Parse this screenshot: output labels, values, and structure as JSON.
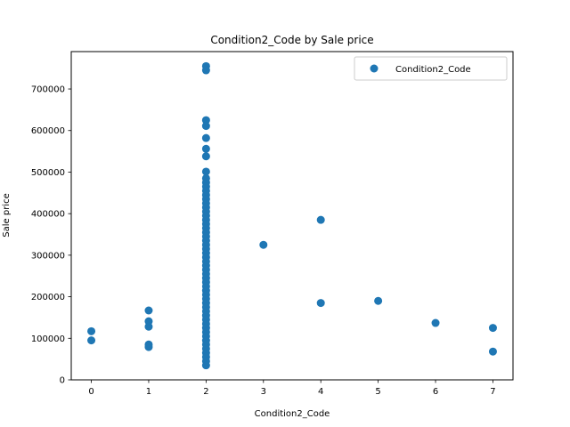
{
  "chart_data": {
    "type": "scatter",
    "title": "Condition2_Code by Sale price",
    "xlabel": "Condition2_Code",
    "ylabel": "Sale price",
    "xlim": [
      -0.35,
      7.35
    ],
    "ylim": [
      0,
      790000
    ],
    "xticks": [
      0,
      1,
      2,
      3,
      4,
      5,
      6,
      7
    ],
    "xtick_labels": [
      "0",
      "1",
      "2",
      "3",
      "4",
      "5",
      "6",
      "7"
    ],
    "yticks": [
      0,
      100000,
      200000,
      300000,
      400000,
      500000,
      600000,
      700000
    ],
    "ytick_labels": [
      "0",
      "100000",
      "200000",
      "300000",
      "400000",
      "500000",
      "600000",
      "700000"
    ],
    "grid": false,
    "legend_position": "top-right",
    "marker_color": "#1f77b4",
    "series": [
      {
        "name": "Condition2_Code",
        "points": [
          [
            0,
            117000
          ],
          [
            0,
            95000
          ],
          [
            1,
            167000
          ],
          [
            1,
            141000
          ],
          [
            1,
            128000
          ],
          [
            1,
            85000
          ],
          [
            1,
            79000
          ],
          [
            2,
            755000
          ],
          [
            2,
            745000
          ],
          [
            2,
            625000
          ],
          [
            2,
            611000
          ],
          [
            2,
            582000
          ],
          [
            2,
            556000
          ],
          [
            2,
            538000
          ],
          [
            2,
            501000
          ],
          [
            2,
            485000
          ],
          [
            2,
            475000
          ],
          [
            2,
            465000
          ],
          [
            2,
            455000
          ],
          [
            2,
            445000
          ],
          [
            2,
            435000
          ],
          [
            2,
            425000
          ],
          [
            2,
            415000
          ],
          [
            2,
            405000
          ],
          [
            2,
            395000
          ],
          [
            2,
            385000
          ],
          [
            2,
            375000
          ],
          [
            2,
            365000
          ],
          [
            2,
            355000
          ],
          [
            2,
            345000
          ],
          [
            2,
            335000
          ],
          [
            2,
            325000
          ],
          [
            2,
            315000
          ],
          [
            2,
            305000
          ],
          [
            2,
            295000
          ],
          [
            2,
            285000
          ],
          [
            2,
            275000
          ],
          [
            2,
            265000
          ],
          [
            2,
            255000
          ],
          [
            2,
            245000
          ],
          [
            2,
            235000
          ],
          [
            2,
            225000
          ],
          [
            2,
            215000
          ],
          [
            2,
            205000
          ],
          [
            2,
            195000
          ],
          [
            2,
            185000
          ],
          [
            2,
            175000
          ],
          [
            2,
            165000
          ],
          [
            2,
            155000
          ],
          [
            2,
            145000
          ],
          [
            2,
            135000
          ],
          [
            2,
            125000
          ],
          [
            2,
            115000
          ],
          [
            2,
            105000
          ],
          [
            2,
            95000
          ],
          [
            2,
            85000
          ],
          [
            2,
            75000
          ],
          [
            2,
            65000
          ],
          [
            2,
            55000
          ],
          [
            2,
            45000
          ],
          [
            2,
            35000
          ],
          [
            3,
            325000
          ],
          [
            4,
            385000
          ],
          [
            4,
            185000
          ],
          [
            5,
            190000
          ],
          [
            6,
            137000
          ],
          [
            7,
            125000
          ],
          [
            7,
            68000
          ]
        ]
      }
    ]
  }
}
